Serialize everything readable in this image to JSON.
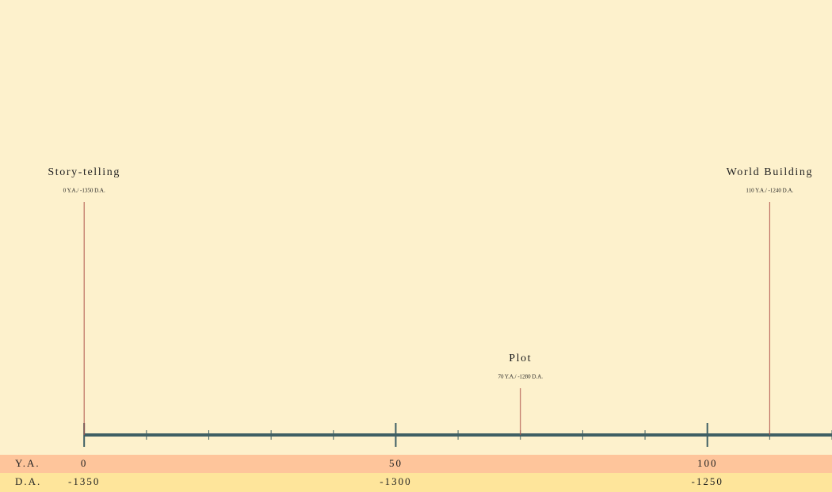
{
  "timeline": {
    "xlim": [
      -13.5,
      120
    ],
    "events": [
      {
        "name": "Story-telling",
        "label": "0 Y.A./ -1350 D.A.",
        "ya": 0
      },
      {
        "name": "Plot",
        "label": "70 Y.A./ -1280 D.A.",
        "ya": 70
      },
      {
        "name": "World Building",
        "label": "110 Y.A./ -1240  D.A.",
        "ya": 110
      }
    ],
    "major_ticks": [
      0,
      50,
      100
    ],
    "minor_ticks": [
      10,
      20,
      30,
      40,
      60,
      70,
      80,
      90,
      110,
      120
    ],
    "ya_label": "Y.A.",
    "da_label": "D.A.",
    "ya_tick_labels": [
      0,
      50,
      100
    ],
    "da_tick_labels": [
      -1350,
      -1300,
      -1250
    ]
  }
}
